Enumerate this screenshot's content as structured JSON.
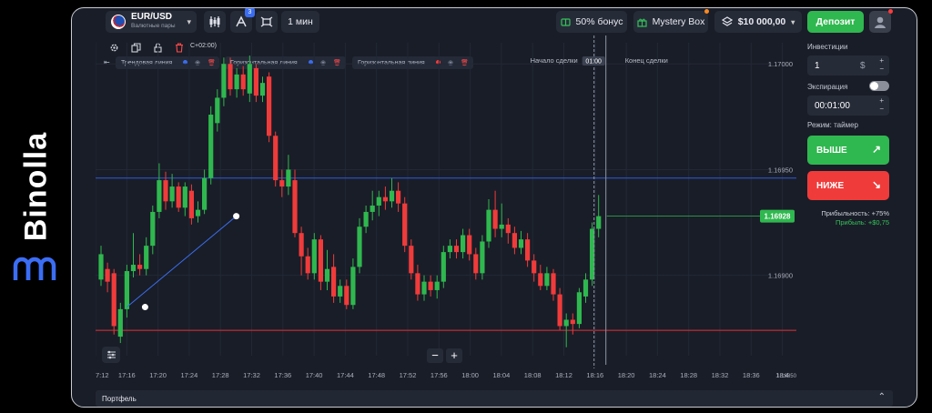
{
  "brand": {
    "name": "Binolla"
  },
  "topbar": {
    "pair_name": "EUR/USD",
    "pair_subtitle": "Валютные пары",
    "indicator_badge": "3",
    "timeframe": "1 мин",
    "bonus_label": "50% бонус",
    "mystery_label": "Mystery Box",
    "balance": "$10 000,00",
    "deposit_label": "Депозит"
  },
  "drawing_tools": {
    "timezone_fragment": "C+02:00)",
    "items": [
      {
        "label": "Трендовая линия",
        "dot_color": "#3a6df0"
      },
      {
        "label": "Горизонтальная линия",
        "dot_color": "#3a6df0"
      },
      {
        "label": "Горизонтальная линия",
        "dot_color": "#ff3b3b"
      }
    ]
  },
  "chart_data": {
    "type": "candlestick",
    "symbol": "EUR/USD",
    "interval": "1 min",
    "x_tick_labels": [
      "7:12",
      "17:16",
      "17:20",
      "17:24",
      "17:28",
      "17:32",
      "17:36",
      "17:40",
      "17:44",
      "17:48",
      "17:52",
      "17:56",
      "18:00",
      "18:04",
      "18:08",
      "18:12",
      "18:16",
      "18:20",
      "18:24",
      "18:28",
      "18:32",
      "18:36",
      "18:4"
    ],
    "y_tick_labels": [
      "1.17000",
      "1.16950",
      "1.16900"
    ],
    "y_tick_values": [
      1.17,
      1.1695,
      1.169
    ],
    "ylim": [
      1.16862,
      1.1701
    ],
    "current_price_label": "1.16928",
    "current_price": 1.16928,
    "start_label": "Начало сделки",
    "end_label": "Конец сделки",
    "timer_label": "01:00",
    "lower_right_label": "1.16850",
    "horizontal_lines": [
      {
        "value": 1.16946,
        "color": "#2f5bd8"
      },
      {
        "value": 1.16874,
        "color": "#e0313a"
      }
    ],
    "trend_line": {
      "from_index": 4,
      "from_price": 1.16885,
      "to_index": 16,
      "to_price": 1.16928,
      "color": "#3a6df0"
    },
    "candles": [
      {
        "o": 1.16898,
        "c": 1.1691,
        "h": 1.16914,
        "l": 1.16895
      },
      {
        "o": 1.16903,
        "c": 1.16897,
        "h": 1.16906,
        "l": 1.16892
      },
      {
        "o": 1.16901,
        "c": 1.16876,
        "h": 1.16903,
        "l": 1.16872
      },
      {
        "o": 1.16871,
        "c": 1.16884,
        "h": 1.16887,
        "l": 1.16868
      },
      {
        "o": 1.16884,
        "c": 1.16902,
        "h": 1.16905,
        "l": 1.1688
      },
      {
        "o": 1.16902,
        "c": 1.16905,
        "h": 1.1692,
        "l": 1.16899
      },
      {
        "o": 1.16905,
        "c": 1.16903,
        "h": 1.1691,
        "l": 1.169
      },
      {
        "o": 1.16903,
        "c": 1.16914,
        "h": 1.16918,
        "l": 1.169
      },
      {
        "o": 1.16914,
        "c": 1.1693,
        "h": 1.16933,
        "l": 1.1691
      },
      {
        "o": 1.1693,
        "c": 1.16945,
        "h": 1.16953,
        "l": 1.16927
      },
      {
        "o": 1.16945,
        "c": 1.16935,
        "h": 1.16949,
        "l": 1.16931
      },
      {
        "o": 1.16935,
        "c": 1.16942,
        "h": 1.16948,
        "l": 1.16932
      },
      {
        "o": 1.16942,
        "c": 1.16932,
        "h": 1.16944,
        "l": 1.1693
      },
      {
        "o": 1.16932,
        "c": 1.16942,
        "h": 1.16944,
        "l": 1.16928
      },
      {
        "o": 1.1694,
        "c": 1.16927,
        "h": 1.16943,
        "l": 1.16924
      },
      {
        "o": 1.16928,
        "c": 1.16931,
        "h": 1.16935,
        "l": 1.16925
      },
      {
        "o": 1.16931,
        "c": 1.16946,
        "h": 1.1695,
        "l": 1.16929
      },
      {
        "o": 1.16946,
        "c": 1.16976,
        "h": 1.1698,
        "l": 1.16943
      },
      {
        "o": 1.16972,
        "c": 1.16984,
        "h": 1.16988,
        "l": 1.16968
      },
      {
        "o": 1.16984,
        "c": 1.17,
        "h": 1.17003,
        "l": 1.1698
      },
      {
        "o": 1.17,
        "c": 1.16988,
        "h": 1.17003,
        "l": 1.16985
      },
      {
        "o": 1.16988,
        "c": 1.16995,
        "h": 1.16998,
        "l": 1.16984
      },
      {
        "o": 1.16995,
        "c": 1.16988,
        "h": 1.16999,
        "l": 1.16985
      },
      {
        "o": 1.16986,
        "c": 1.17,
        "h": 1.17004,
        "l": 1.16982
      },
      {
        "o": 1.16998,
        "c": 1.16985,
        "h": 1.17,
        "l": 1.16982
      },
      {
        "o": 1.16985,
        "c": 1.16991,
        "h": 1.16994,
        "l": 1.16982
      },
      {
        "o": 1.16994,
        "c": 1.16966,
        "h": 1.16996,
        "l": 1.16963
      },
      {
        "o": 1.16966,
        "c": 1.16945,
        "h": 1.16968,
        "l": 1.16942
      },
      {
        "o": 1.16945,
        "c": 1.16942,
        "h": 1.1695,
        "l": 1.16937
      },
      {
        "o": 1.16942,
        "c": 1.1695,
        "h": 1.16957,
        "l": 1.16938
      },
      {
        "o": 1.16945,
        "c": 1.1692,
        "h": 1.1695,
        "l": 1.16918
      },
      {
        "o": 1.1692,
        "c": 1.16909,
        "h": 1.16923,
        "l": 1.169
      },
      {
        "o": 1.16909,
        "c": 1.16901,
        "h": 1.16913,
        "l": 1.16898
      },
      {
        "o": 1.16901,
        "c": 1.16917,
        "h": 1.1692,
        "l": 1.16898
      },
      {
        "o": 1.16917,
        "c": 1.16897,
        "h": 1.16919,
        "l": 1.16893
      },
      {
        "o": 1.16897,
        "c": 1.16903,
        "h": 1.16912,
        "l": 1.16893
      },
      {
        "o": 1.16904,
        "c": 1.1689,
        "h": 1.1691,
        "l": 1.16887
      },
      {
        "o": 1.1689,
        "c": 1.16895,
        "h": 1.16898,
        "l": 1.16887
      },
      {
        "o": 1.16895,
        "c": 1.16886,
        "h": 1.16898,
        "l": 1.16884
      },
      {
        "o": 1.16886,
        "c": 1.16904,
        "h": 1.16908,
        "l": 1.16884
      },
      {
        "o": 1.16904,
        "c": 1.16923,
        "h": 1.16927,
        "l": 1.16901
      },
      {
        "o": 1.16923,
        "c": 1.1693,
        "h": 1.16933,
        "l": 1.1692
      },
      {
        "o": 1.1693,
        "c": 1.16933,
        "h": 1.1694,
        "l": 1.16926
      },
      {
        "o": 1.16933,
        "c": 1.16937,
        "h": 1.1694,
        "l": 1.16928
      },
      {
        "o": 1.16937,
        "c": 1.16935,
        "h": 1.16942,
        "l": 1.16931
      },
      {
        "o": 1.16935,
        "c": 1.1694,
        "h": 1.16946,
        "l": 1.16932
      },
      {
        "o": 1.1694,
        "c": 1.16934,
        "h": 1.16944,
        "l": 1.1693
      },
      {
        "o": 1.16934,
        "c": 1.16914,
        "h": 1.16937,
        "l": 1.16911
      },
      {
        "o": 1.16914,
        "c": 1.16901,
        "h": 1.16917,
        "l": 1.16898
      },
      {
        "o": 1.16901,
        "c": 1.16891,
        "h": 1.16905,
        "l": 1.16888
      },
      {
        "o": 1.16891,
        "c": 1.16897,
        "h": 1.169,
        "l": 1.16888
      },
      {
        "o": 1.16897,
        "c": 1.16893,
        "h": 1.169,
        "l": 1.1689
      },
      {
        "o": 1.16893,
        "c": 1.16897,
        "h": 1.169,
        "l": 1.16889
      },
      {
        "o": 1.16897,
        "c": 1.16911,
        "h": 1.16914,
        "l": 1.16894
      },
      {
        "o": 1.16911,
        "c": 1.16914,
        "h": 1.16917,
        "l": 1.16908
      },
      {
        "o": 1.16914,
        "c": 1.16911,
        "h": 1.16917,
        "l": 1.16908
      },
      {
        "o": 1.16911,
        "c": 1.16919,
        "h": 1.16922,
        "l": 1.16908
      },
      {
        "o": 1.16919,
        "c": 1.1691,
        "h": 1.16922,
        "l": 1.16907
      },
      {
        "o": 1.1691,
        "c": 1.16901,
        "h": 1.16913,
        "l": 1.16898
      },
      {
        "o": 1.16901,
        "c": 1.16916,
        "h": 1.16919,
        "l": 1.16898
      },
      {
        "o": 1.16916,
        "c": 1.16931,
        "h": 1.16936,
        "l": 1.16913
      },
      {
        "o": 1.16931,
        "c": 1.16922,
        "h": 1.1694,
        "l": 1.16918
      },
      {
        "o": 1.16922,
        "c": 1.16924,
        "h": 1.16934,
        "l": 1.16918
      },
      {
        "o": 1.16924,
        "c": 1.1692,
        "h": 1.16927,
        "l": 1.16915
      },
      {
        "o": 1.1692,
        "c": 1.16913,
        "h": 1.16923,
        "l": 1.1691
      },
      {
        "o": 1.16913,
        "c": 1.16917,
        "h": 1.16921,
        "l": 1.1691
      },
      {
        "o": 1.16917,
        "c": 1.16907,
        "h": 1.1692,
        "l": 1.16904
      },
      {
        "o": 1.16907,
        "c": 1.16901,
        "h": 1.1691,
        "l": 1.16897
      },
      {
        "o": 1.16901,
        "c": 1.16895,
        "h": 1.16905,
        "l": 1.16893
      },
      {
        "o": 1.16895,
        "c": 1.16901,
        "h": 1.16904,
        "l": 1.16893
      },
      {
        "o": 1.16901,
        "c": 1.16891,
        "h": 1.16903,
        "l": 1.16888
      },
      {
        "o": 1.16891,
        "c": 1.16876,
        "h": 1.16894,
        "l": 1.16874
      },
      {
        "o": 1.16876,
        "c": 1.16879,
        "h": 1.16882,
        "l": 1.16866
      },
      {
        "o": 1.16879,
        "c": 1.16877,
        "h": 1.16882,
        "l": 1.16872
      },
      {
        "o": 1.16877,
        "c": 1.16892,
        "h": 1.16894,
        "l": 1.16875
      },
      {
        "o": 1.1689,
        "c": 1.16898,
        "h": 1.16901,
        "l": 1.16887
      },
      {
        "o": 1.16898,
        "c": 1.16922,
        "h": 1.16925,
        "l": 1.16895
      },
      {
        "o": 1.16922,
        "c": 1.16928,
        "h": 1.16938,
        "l": 1.16918
      }
    ]
  },
  "right_panel": {
    "investment_label": "Инвестиции",
    "investment_value": "1",
    "currency": "$",
    "expiration_label": "Экспирация",
    "expiration_value": "00:01:00",
    "mode_label": "Режим: таймер",
    "up_label": "ВЫШЕ",
    "down_label": "НИЖЕ",
    "profitability": "Прибыльность: +75%",
    "profit": "Прибыль: +$0,75",
    "up_color": "#2fb84f",
    "down_color": "#f03b3b"
  },
  "portfolio": {
    "label": "Портфель"
  }
}
